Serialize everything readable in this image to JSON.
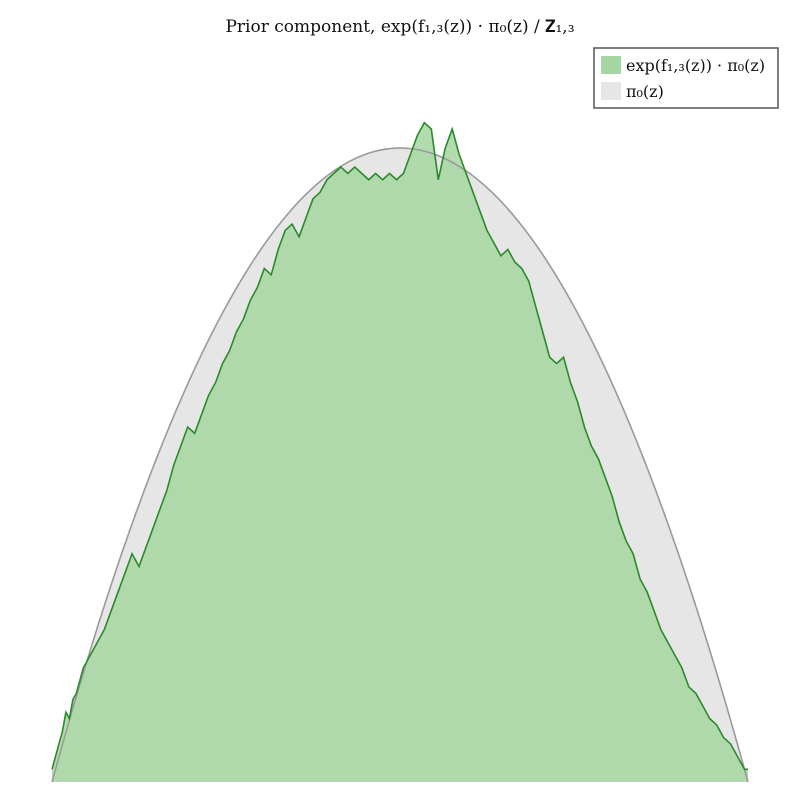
{
  "chart_data": {
    "type": "area",
    "title": "Prior component, exp(f₁,₃(z)) · π₀(z) / 𝐙₁,₃",
    "xlabel": "",
    "ylabel": "",
    "grid": false,
    "axes_visible": false,
    "xlim": [
      -1,
      1
    ],
    "ylim": [
      0,
      1.06
    ],
    "legend": {
      "placement": "top-right"
    },
    "series": [
      {
        "name": "exp(f₁,₃(z)) · π₀(z)",
        "fill_color": "#a6d6a0",
        "line_color": "#2a8a2a",
        "points": [
          [
            -1.0,
            0.02
          ],
          [
            -0.99,
            0.04
          ],
          [
            -0.98,
            0.06
          ],
          [
            -0.97,
            0.08
          ],
          [
            -0.96,
            0.11
          ],
          [
            -0.95,
            0.1
          ],
          [
            -0.94,
            0.13
          ],
          [
            -0.93,
            0.14
          ],
          [
            -0.92,
            0.16
          ],
          [
            -0.91,
            0.18
          ],
          [
            -0.89,
            0.2
          ],
          [
            -0.87,
            0.22
          ],
          [
            -0.85,
            0.24
          ],
          [
            -0.83,
            0.27
          ],
          [
            -0.81,
            0.3
          ],
          [
            -0.79,
            0.33
          ],
          [
            -0.77,
            0.36
          ],
          [
            -0.75,
            0.34
          ],
          [
            -0.73,
            0.37
          ],
          [
            -0.71,
            0.4
          ],
          [
            -0.69,
            0.43
          ],
          [
            -0.67,
            0.46
          ],
          [
            -0.65,
            0.5
          ],
          [
            -0.63,
            0.53
          ],
          [
            -0.61,
            0.56
          ],
          [
            -0.59,
            0.55
          ],
          [
            -0.57,
            0.58
          ],
          [
            -0.55,
            0.61
          ],
          [
            -0.53,
            0.63
          ],
          [
            -0.51,
            0.66
          ],
          [
            -0.49,
            0.68
          ],
          [
            -0.47,
            0.71
          ],
          [
            -0.45,
            0.73
          ],
          [
            -0.43,
            0.76
          ],
          [
            -0.41,
            0.78
          ],
          [
            -0.39,
            0.81
          ],
          [
            -0.37,
            0.8
          ],
          [
            -0.35,
            0.84
          ],
          [
            -0.33,
            0.87
          ],
          [
            -0.31,
            0.88
          ],
          [
            -0.29,
            0.86
          ],
          [
            -0.27,
            0.89
          ],
          [
            -0.25,
            0.92
          ],
          [
            -0.23,
            0.93
          ],
          [
            -0.21,
            0.95
          ],
          [
            -0.19,
            0.96
          ],
          [
            -0.17,
            0.97
          ],
          [
            -0.15,
            0.96
          ],
          [
            -0.13,
            0.97
          ],
          [
            -0.11,
            0.96
          ],
          [
            -0.09,
            0.95
          ],
          [
            -0.07,
            0.96
          ],
          [
            -0.05,
            0.95
          ],
          [
            -0.03,
            0.96
          ],
          [
            -0.01,
            0.95
          ],
          [
            0.01,
            0.96
          ],
          [
            0.03,
            0.99
          ],
          [
            0.05,
            1.02
          ],
          [
            0.07,
            1.04
          ],
          [
            0.09,
            1.03
          ],
          [
            0.11,
            0.95
          ],
          [
            0.13,
            1.0
          ],
          [
            0.15,
            1.03
          ],
          [
            0.17,
            0.99
          ],
          [
            0.19,
            0.96
          ],
          [
            0.21,
            0.93
          ],
          [
            0.23,
            0.9
          ],
          [
            0.25,
            0.87
          ],
          [
            0.27,
            0.85
          ],
          [
            0.29,
            0.83
          ],
          [
            0.31,
            0.84
          ],
          [
            0.33,
            0.82
          ],
          [
            0.35,
            0.81
          ],
          [
            0.37,
            0.79
          ],
          [
            0.39,
            0.75
          ],
          [
            0.41,
            0.71
          ],
          [
            0.43,
            0.67
          ],
          [
            0.45,
            0.66
          ],
          [
            0.47,
            0.67
          ],
          [
            0.49,
            0.63
          ],
          [
            0.51,
            0.6
          ],
          [
            0.53,
            0.56
          ],
          [
            0.55,
            0.53
          ],
          [
            0.57,
            0.51
          ],
          [
            0.59,
            0.48
          ],
          [
            0.61,
            0.45
          ],
          [
            0.63,
            0.41
          ],
          [
            0.65,
            0.38
          ],
          [
            0.67,
            0.36
          ],
          [
            0.69,
            0.32
          ],
          [
            0.71,
            0.3
          ],
          [
            0.73,
            0.27
          ],
          [
            0.75,
            0.24
          ],
          [
            0.77,
            0.22
          ],
          [
            0.79,
            0.2
          ],
          [
            0.81,
            0.18
          ],
          [
            0.83,
            0.15
          ],
          [
            0.85,
            0.14
          ],
          [
            0.87,
            0.12
          ],
          [
            0.89,
            0.1
          ],
          [
            0.91,
            0.09
          ],
          [
            0.93,
            0.07
          ],
          [
            0.95,
            0.06
          ],
          [
            0.96,
            0.05
          ],
          [
            0.97,
            0.04
          ],
          [
            0.98,
            0.03
          ],
          [
            0.99,
            0.02
          ],
          [
            1.0,
            0.02
          ]
        ]
      },
      {
        "name": "π₀(z)",
        "fill_color": "#e6e6e6",
        "line_color": "#9a9a9a",
        "function": "1 - z^2"
      }
    ],
    "colors": {
      "green_fill": "#a6d6a0",
      "green_line": "#2a8a2a",
      "gray_fill": "#e6e6e6",
      "gray_line": "#9a9a9a"
    }
  }
}
